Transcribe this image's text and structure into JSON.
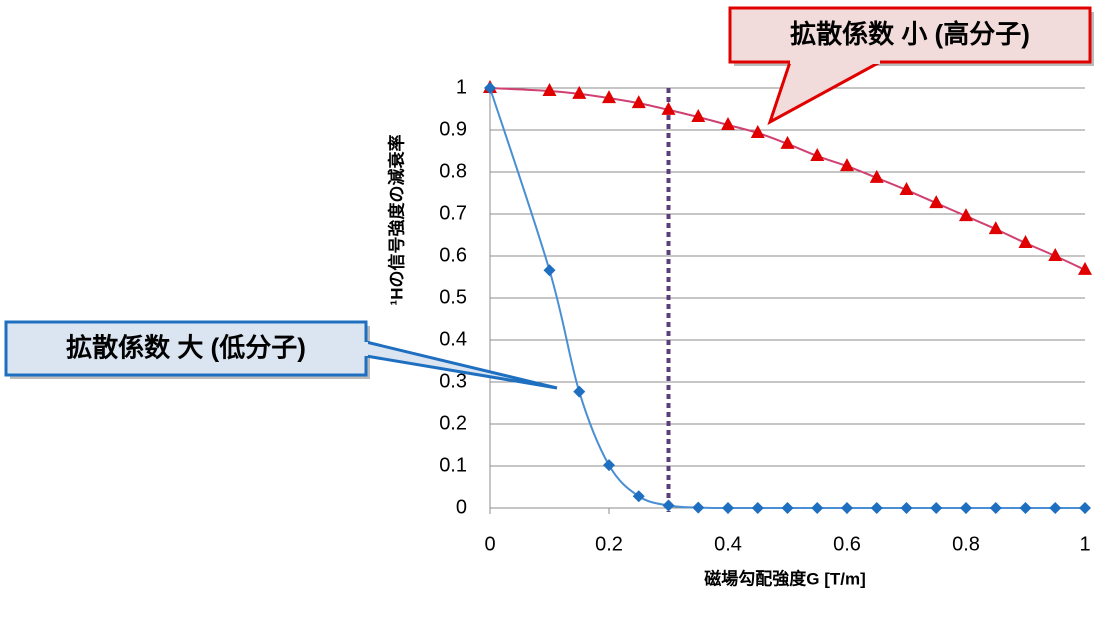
{
  "chart_data": {
    "type": "line",
    "x_label": "磁場勾配強度G [T/m]",
    "y_label": "¹Hの信号強度の減衰率",
    "x": [
      0,
      0.1,
      0.15,
      0.2,
      0.25,
      0.3,
      0.35,
      0.4,
      0.45,
      0.5,
      0.55,
      0.6,
      0.65,
      0.7,
      0.75,
      0.8,
      0.85,
      0.9,
      0.95,
      1
    ],
    "series": [
      {
        "color": "#e00000",
        "marker": "triangle",
        "line_color": "#d04070",
        "values": [
          1,
          0.993,
          0.986,
          0.976,
          0.964,
          0.948,
          0.931,
          0.912,
          0.893,
          0.867,
          0.838,
          0.814,
          0.786,
          0.757,
          0.726,
          0.695,
          0.664,
          0.631,
          0.6,
          0.567
        ]
      },
      {
        "color": "#1f6fc0",
        "marker": "diamond",
        "line_color": "#4a8fd4",
        "values": [
          1,
          0.566,
          0.277,
          0.102,
          0.028,
          0.006,
          0.001,
          0,
          0,
          0,
          0,
          0,
          0,
          0,
          0,
          0,
          0,
          0,
          0,
          0
        ]
      }
    ],
    "xlim": [
      0,
      1
    ],
    "xticks": [
      0,
      0.2,
      0.4,
      0.6,
      0.8,
      1
    ],
    "ylim": [
      0,
      1
    ],
    "yticks": [
      0,
      0.1,
      0.2,
      0.3,
      0.4,
      0.5,
      0.6,
      0.7,
      0.8,
      0.9,
      1
    ],
    "grid": true,
    "vline": {
      "x": 0.3,
      "color": "#5a3f7a"
    },
    "annotations": [
      {
        "text": "拡散係数 小 (高分子)",
        "series": 0,
        "color": "#e00000",
        "fill": "#f2dcdb"
      },
      {
        "text": "拡散係数 大 (低分子)",
        "series": 1,
        "color": "#1f6fc0",
        "fill": "#dbe5f1"
      }
    ]
  }
}
